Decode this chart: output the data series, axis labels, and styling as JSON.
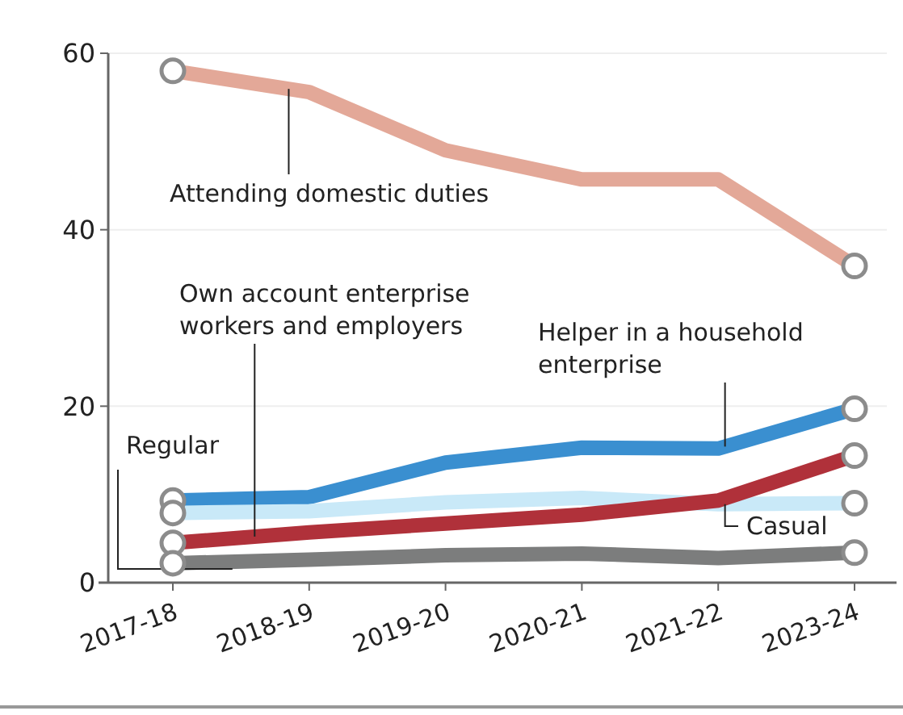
{
  "chart_data": {
    "type": "line",
    "categories": [
      "2017-18",
      "2018-19",
      "2019-20",
      "2020-21",
      "2021-22",
      "2023-24"
    ],
    "ylim": [
      0,
      60
    ],
    "yticks": [
      0,
      20,
      40,
      60
    ],
    "grid": "y",
    "line_style": "solid",
    "series": [
      {
        "name": "Attending domestic duties",
        "color": "#e3a898",
        "values": [
          58.0,
          55.6,
          49.0,
          45.7,
          45.7,
          35.9
        ]
      },
      {
        "name": "Helper in a household enterprise",
        "color": "#3a8fd0",
        "values": [
          9.3,
          9.7,
          13.6,
          15.3,
          15.2,
          19.7
        ]
      },
      {
        "name": "Casual",
        "color": "#c9e9f8",
        "values": [
          7.9,
          8.1,
          9.1,
          9.6,
          8.9,
          9.0
        ]
      },
      {
        "name": "Own account enterprise workers and employers",
        "color": "#b0313a",
        "values": [
          4.5,
          5.7,
          6.7,
          7.7,
          9.3,
          14.4
        ]
      },
      {
        "name": "Regular",
        "color": "#7c7d7d",
        "values": [
          2.2,
          2.6,
          3.1,
          3.3,
          2.8,
          3.4
        ]
      }
    ]
  }
}
